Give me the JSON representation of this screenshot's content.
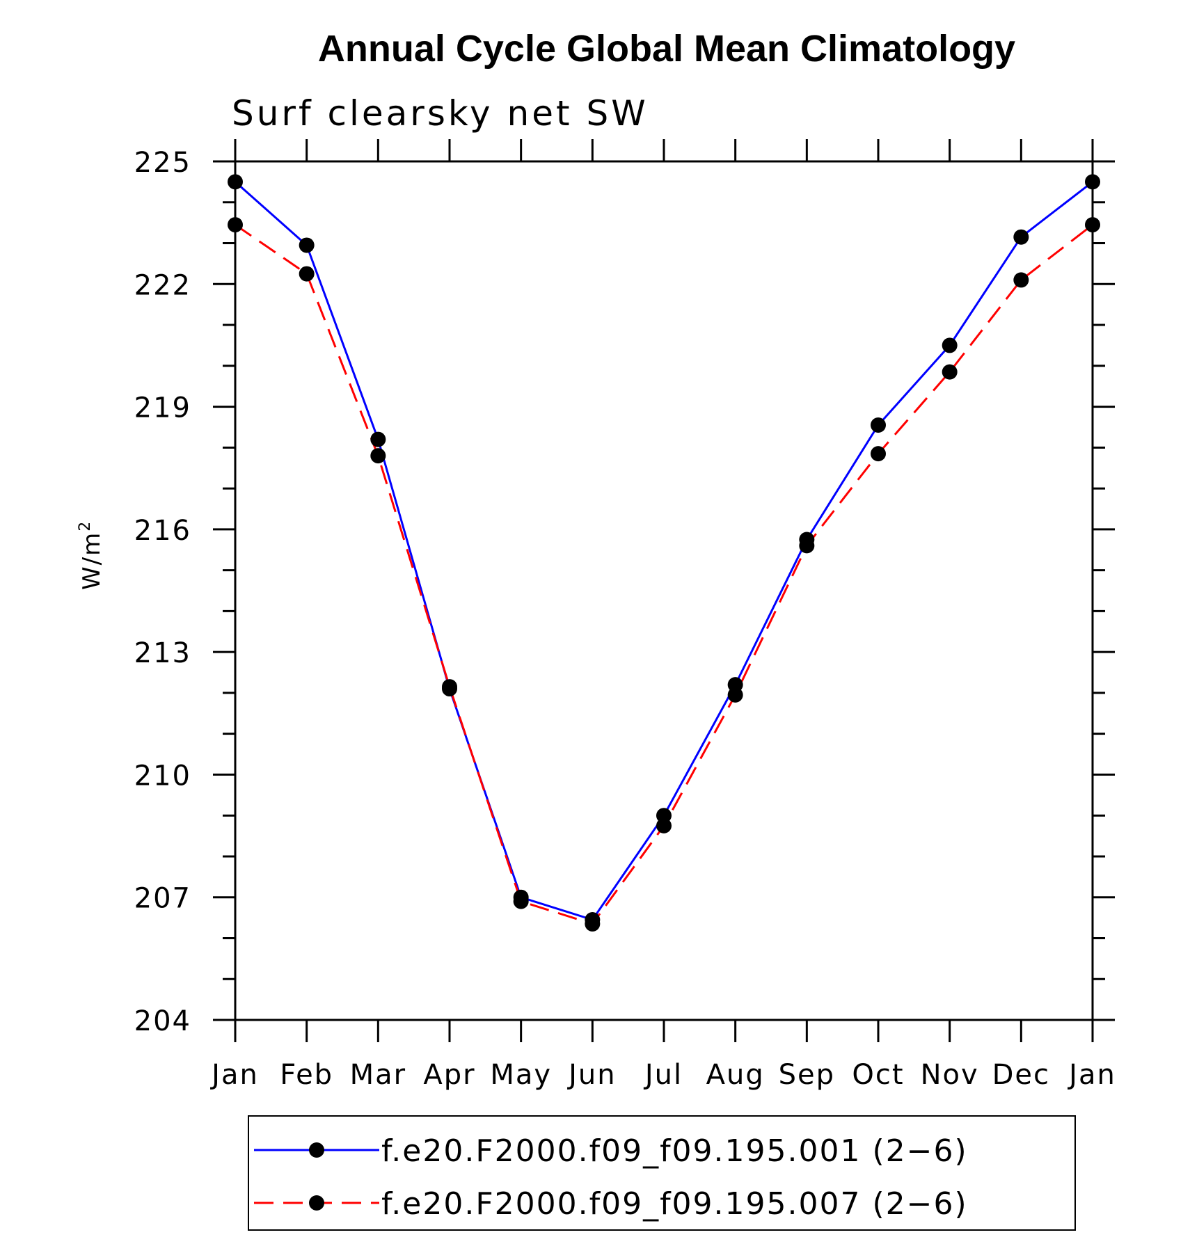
{
  "chart_data": {
    "type": "line",
    "title": "Annual Cycle Global Mean Climatology",
    "subtitle": "Surf clearsky net SW",
    "ylabel": "W/m",
    "ylabel_sup": "2",
    "ylim": [
      204,
      225
    ],
    "yticks": [
      204,
      207,
      210,
      213,
      216,
      219,
      222,
      225
    ],
    "categories": [
      "Jan",
      "Feb",
      "Mar",
      "Apr",
      "May",
      "Jun",
      "Jul",
      "Aug",
      "Sep",
      "Oct",
      "Nov",
      "Dec",
      "Jan"
    ],
    "series": [
      {
        "name": "f.e20.F2000.f09_f09.195.001 (2−6)",
        "color": "#0000ff",
        "style": "solid",
        "values": [
          224.5,
          222.95,
          218.2,
          212.1,
          207.0,
          206.45,
          209.0,
          212.2,
          215.75,
          218.55,
          220.5,
          223.15,
          224.5
        ]
      },
      {
        "name": "f.e20.F2000.f09_f09.195.007 (2−6)",
        "color": "#ff0000",
        "style": "dashed",
        "values": [
          223.45,
          222.25,
          217.8,
          212.15,
          206.9,
          206.35,
          208.75,
          211.95,
          215.6,
          217.85,
          219.85,
          222.1,
          223.45
        ]
      }
    ],
    "marker": "filled-circle",
    "legend_position": "bottom"
  }
}
